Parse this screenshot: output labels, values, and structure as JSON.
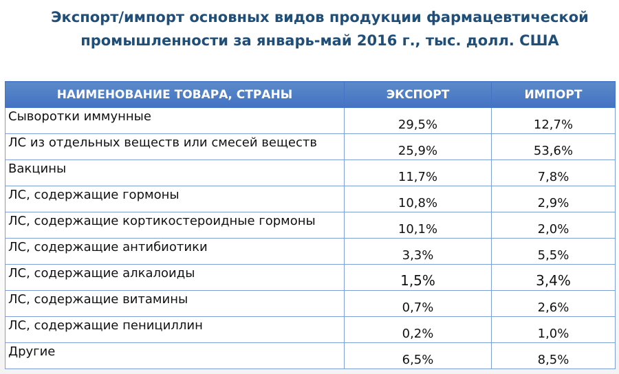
{
  "title": {
    "line1": "Экспорт/импорт основных видов продукции фармацевтической",
    "line2": "промышленности за январь-май 2016 г., тыс. долл. США"
  },
  "table": {
    "headers": [
      "НАИМЕНОВАНИЕ ТОВАРА, СТРАНЫ",
      "ЭКСПОРТ",
      "ИМПОРТ"
    ],
    "rows": [
      {
        "name": "Сыворотки иммунные",
        "export": "29,5%",
        "import": "12,7%"
      },
      {
        "name": "ЛС из отдельных веществ или смесей веществ",
        "export": "25,9%",
        "import": "53,6%"
      },
      {
        "name": "Вакцины",
        "export": "11,7%",
        "import": "7,8%"
      },
      {
        "name": "ЛС, содержащие гормоны",
        "export": "10,8%",
        "import": "2,9%"
      },
      {
        "name": "ЛС, содержащие кортикостероидные гормоны",
        "export": "10,1%",
        "import": "2,0%"
      },
      {
        "name": "ЛС, содержащие антибиотики",
        "export": "3,3%",
        "import": "5,5%"
      },
      {
        "name": "ЛС, содержащие алкалоиды",
        "export": "1,5%",
        "import": "3,4%"
      },
      {
        "name": "ЛС, содержащие витамины",
        "export": "0,7%",
        "import": "2,6%"
      },
      {
        "name": "ЛС, содержащие пенициллин",
        "export": "0,2%",
        "import": "1,0%"
      },
      {
        "name": "Другие",
        "export": "6,5%",
        "import": "8,5%"
      }
    ]
  },
  "colors": {
    "title": "#1f4e79",
    "header_bg": "#4472c4",
    "border": "#7b9fd6"
  }
}
